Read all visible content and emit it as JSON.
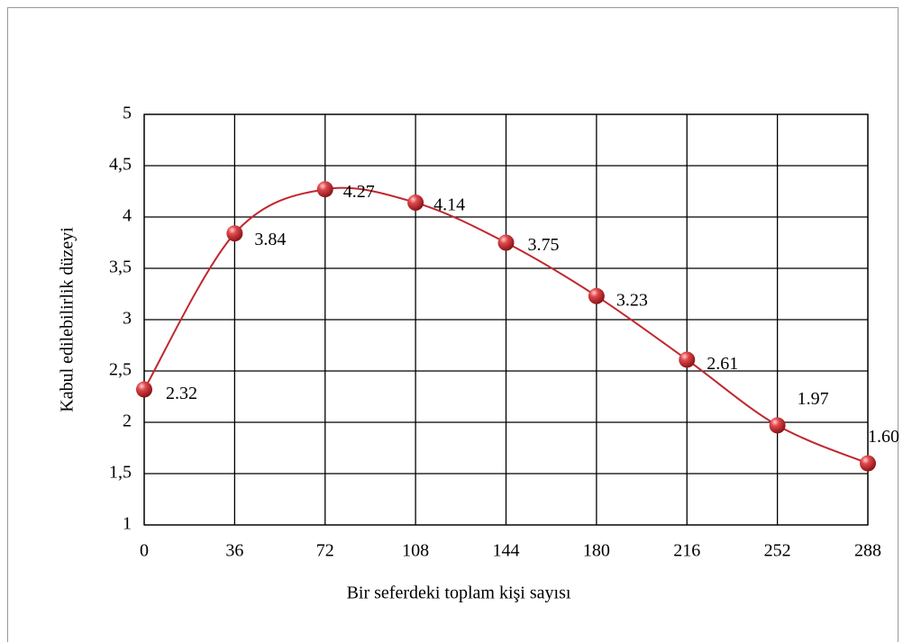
{
  "chart_data": {
    "type": "line",
    "x_label": "Bir seferdeki toplam kişi sayısı",
    "y_label": "Kabul edilebilirlik düzeyi",
    "x": [
      0,
      36,
      72,
      108,
      144,
      180,
      216,
      252,
      288
    ],
    "series": [
      {
        "color": "#c0272d",
        "values": [
          2.32,
          3.84,
          4.27,
          4.14,
          3.75,
          3.23,
          2.61,
          1.97,
          1.6
        ],
        "value_labels": [
          "2.32",
          "3.84",
          "4.27",
          "4.14",
          "3.75",
          "3.23",
          "2.61",
          "1.97",
          "1.60"
        ]
      }
    ],
    "xlim": [
      0,
      288
    ],
    "xticks": [
      0,
      36,
      72,
      108,
      144,
      180,
      216,
      252,
      288
    ],
    "ylim": [
      1,
      5
    ],
    "yticks": [
      1,
      {
        "value": 1.5,
        "label": "1,5"
      },
      2,
      {
        "value": 2.5,
        "label": "2,5"
      },
      3,
      {
        "value": 3.5,
        "label": "3,5"
      },
      4,
      {
        "value": 4.5,
        "label": "4,5"
      },
      5
    ],
    "grid": true,
    "smooth": true
  }
}
